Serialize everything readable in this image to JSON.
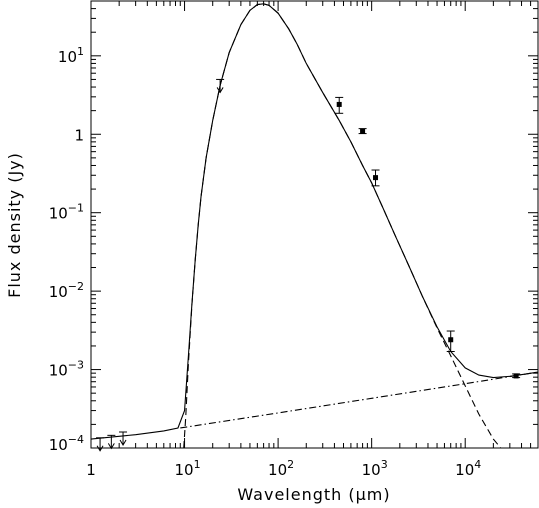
{
  "chart_data": {
    "type": "scatter",
    "xlabel": "Wavelength (μm)",
    "ylabel": "Flux density (Jy)",
    "xscale": "log",
    "yscale": "log",
    "xlim": [
      1,
      60000
    ],
    "ylim": [
      0.0001,
      50
    ],
    "x_tick_labels": [
      {
        "value": 1,
        "base": "1",
        "exp": ""
      },
      {
        "value": 10,
        "base": "10",
        "exp": "1"
      },
      {
        "value": 100,
        "base": "10",
        "exp": "2"
      },
      {
        "value": 1000,
        "base": "10",
        "exp": "3"
      },
      {
        "value": 10000,
        "base": "10",
        "exp": "4"
      }
    ],
    "y_tick_labels": [
      {
        "value": 0.0001,
        "base": "10",
        "exp": "−4"
      },
      {
        "value": 0.001,
        "base": "10",
        "exp": "−3"
      },
      {
        "value": 0.01,
        "base": "10",
        "exp": "−2"
      },
      {
        "value": 0.1,
        "base": "10",
        "exp": "−1"
      },
      {
        "value": 1,
        "base": "1",
        "exp": ""
      },
      {
        "value": 10,
        "base": "10",
        "exp": "1"
      }
    ],
    "series": [
      {
        "style": "solid",
        "x": [
          1,
          3,
          6,
          8.5,
          10,
          11,
          12,
          13,
          14,
          15,
          17,
          20,
          24,
          30,
          40,
          50,
          60,
          70,
          80,
          100,
          130,
          160,
          200,
          300,
          450,
          600,
          800,
          1000,
          1300,
          1800,
          2500,
          3500,
          5000,
          7000,
          10000,
          14000,
          20000,
          30000,
          45000,
          60000
        ],
        "y": [
          0.00013,
          0.000148,
          0.000165,
          0.00018,
          0.0003,
          0.0015,
          0.007,
          0.025,
          0.07,
          0.16,
          0.5,
          1.5,
          4.2,
          11,
          25,
          38,
          45,
          46,
          44,
          35,
          22,
          14,
          8,
          3.4,
          1.5,
          0.8,
          0.4,
          0.24,
          0.12,
          0.05,
          0.021,
          0.0085,
          0.0035,
          0.0017,
          0.00105,
          0.00085,
          0.00079,
          0.00082,
          0.00088,
          0.00093
        ]
      },
      {
        "style": "dashed",
        "x": [
          9.8,
          10.3,
          11,
          12,
          13,
          14,
          15,
          17,
          20,
          24,
          30,
          40,
          50,
          60,
          70,
          80,
          100,
          130,
          160,
          200,
          300,
          450,
          600,
          800,
          1000,
          1300,
          1800,
          2500,
          3500,
          5000,
          7000,
          10000,
          14000,
          20000,
          24000
        ],
        "y": [
          0.0001,
          0.00025,
          0.0012,
          0.0068,
          0.025,
          0.07,
          0.16,
          0.5,
          1.5,
          4.2,
          11,
          25,
          38,
          45,
          46,
          44,
          35,
          22,
          14,
          8,
          3.4,
          1.5,
          0.8,
          0.4,
          0.24,
          0.12,
          0.05,
          0.021,
          0.0085,
          0.0034,
          0.0015,
          0.00062,
          0.00027,
          0.00013,
          0.0001
        ]
      },
      {
        "style": "dash-dot",
        "x": [
          9,
          100,
          1000,
          10000,
          60000
        ],
        "y": [
          0.00018,
          0.00028,
          0.00043,
          0.00066,
          0.00093
        ]
      }
    ],
    "points": [
      {
        "x": 450,
        "y": 2.4,
        "yerr_low": 1.85,
        "yerr_high": 2.95
      },
      {
        "x": 800,
        "y": 1.1,
        "yerr_low": 1.02,
        "yerr_high": 1.18
      },
      {
        "x": 1100,
        "y": 0.28,
        "yerr_low": 0.22,
        "yerr_high": 0.35
      },
      {
        "x": 7000,
        "y": 0.0024,
        "yerr_low": 0.0017,
        "yerr_high": 0.0031
      },
      {
        "x": 35000,
        "y": 0.00083,
        "yerr_low": 0.00079,
        "yerr_high": 0.00088
      }
    ],
    "upper_limits": [
      {
        "x": 1.25,
        "y": 0.000135
      },
      {
        "x": 1.65,
        "y": 0.000145
      },
      {
        "x": 2.2,
        "y": 0.00016
      },
      {
        "x": 24,
        "y": 5
      }
    ]
  }
}
